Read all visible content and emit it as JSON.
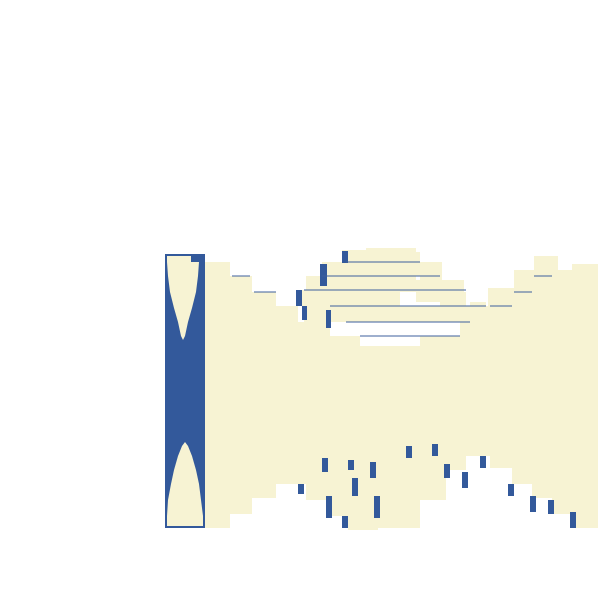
{
  "colors": {
    "background": "#ffffff",
    "face": "#f7f3d3",
    "side": "#33599b",
    "edge": "#3c5f9c"
  }
}
